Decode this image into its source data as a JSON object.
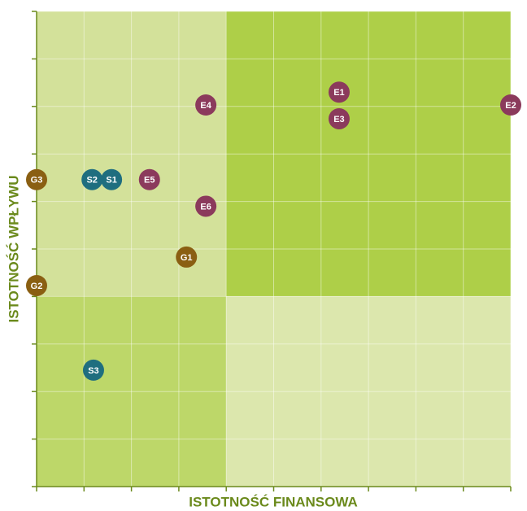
{
  "chart_data": {
    "type": "scatter",
    "x_label": "ISTOTNOŚĆ FINANSOWA",
    "y_label": "ISTOTNOŚĆ WPŁYWU",
    "xlim": [
      0,
      10
    ],
    "ylim": [
      0,
      10
    ],
    "xticks": [
      0,
      1,
      2,
      3,
      4,
      5,
      6,
      7,
      8,
      9,
      10
    ],
    "yticks": [
      0,
      1,
      2,
      3,
      4,
      5,
      6,
      7,
      8,
      9,
      10
    ],
    "grid": true,
    "series": [
      {
        "color": "#8b3a5c",
        "labels": [
          "E1",
          "E2",
          "E3",
          "E4",
          "E5",
          "E6"
        ],
        "x": [
          6.38,
          10,
          6.38,
          3.57,
          2.38,
          3.57
        ],
        "y": [
          8.3,
          8.03,
          7.74,
          8.03,
          6.46,
          5.9
        ]
      },
      {
        "color": "#1f6e7f",
        "labels": [
          "S1",
          "S2",
          "S3"
        ],
        "x": [
          1.58,
          1.17,
          1.2
        ],
        "y": [
          6.46,
          6.46,
          2.45
        ]
      },
      {
        "color": "#8a5f12",
        "labels": [
          "G1",
          "G2",
          "G3"
        ],
        "x": [
          3.16,
          0,
          0
        ],
        "y": [
          4.83,
          4.23,
          6.46
        ]
      }
    ]
  }
}
